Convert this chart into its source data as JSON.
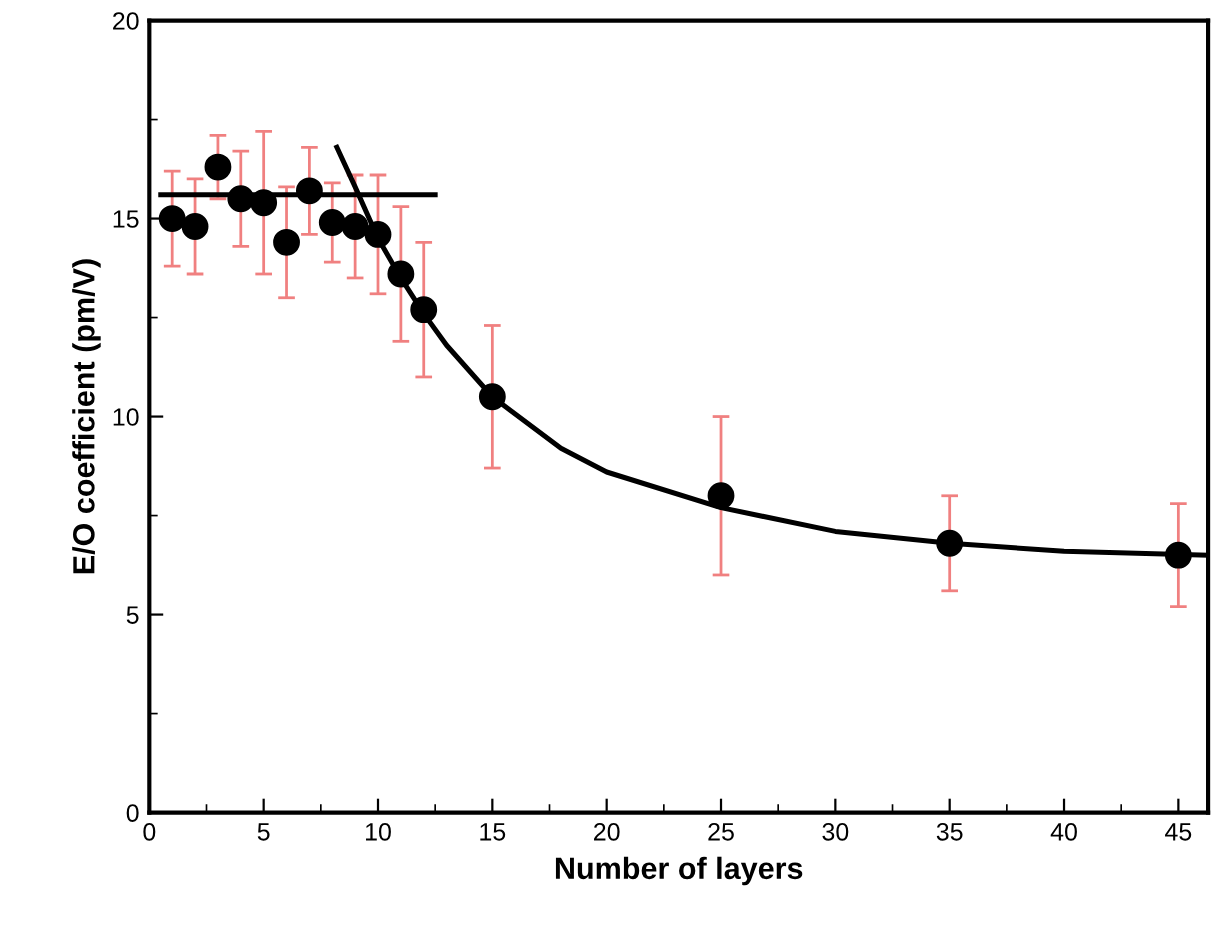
{
  "chart_data": {
    "type": "scatter",
    "xlabel": "Number of layers",
    "ylabel": "E/O coefficient (pm/V)",
    "xlim": [
      0,
      46.3
    ],
    "ylim": [
      0,
      20
    ],
    "xticks": [
      0,
      5,
      10,
      15,
      20,
      25,
      30,
      35,
      40,
      45
    ],
    "yticks": [
      0,
      5,
      10,
      15,
      20
    ],
    "grid": false,
    "series": [
      {
        "marker": "circle",
        "color": "#000000",
        "x": [
          1,
          2,
          3,
          4,
          5,
          6,
          7,
          8,
          9,
          10,
          11,
          12,
          15,
          25,
          35,
          45
        ],
        "values": [
          15.0,
          14.8,
          16.3,
          15.5,
          15.4,
          14.4,
          15.7,
          14.9,
          14.8,
          14.6,
          13.6,
          12.7,
          10.5,
          8.0,
          6.8,
          6.5
        ],
        "errors": [
          1.2,
          1.2,
          0.8,
          1.2,
          1.8,
          1.4,
          1.1,
          1.0,
          1.3,
          1.5,
          1.7,
          1.7,
          1.8,
          2.0,
          1.2,
          1.3
        ]
      },
      {
        "type": "line",
        "color": "#000000",
        "x": [
          0.5,
          12.5
        ],
        "values": [
          15.6,
          15.6
        ]
      },
      {
        "type": "line",
        "color": "#000000",
        "x": [
          8.2,
          9,
          10,
          11,
          12,
          13,
          15,
          18,
          20,
          25,
          30,
          35,
          40,
          46.3
        ],
        "values": [
          16.8,
          15.8,
          14.5,
          13.5,
          12.6,
          11.8,
          10.5,
          9.2,
          8.6,
          7.7,
          7.1,
          6.8,
          6.6,
          6.5
        ]
      }
    ]
  }
}
